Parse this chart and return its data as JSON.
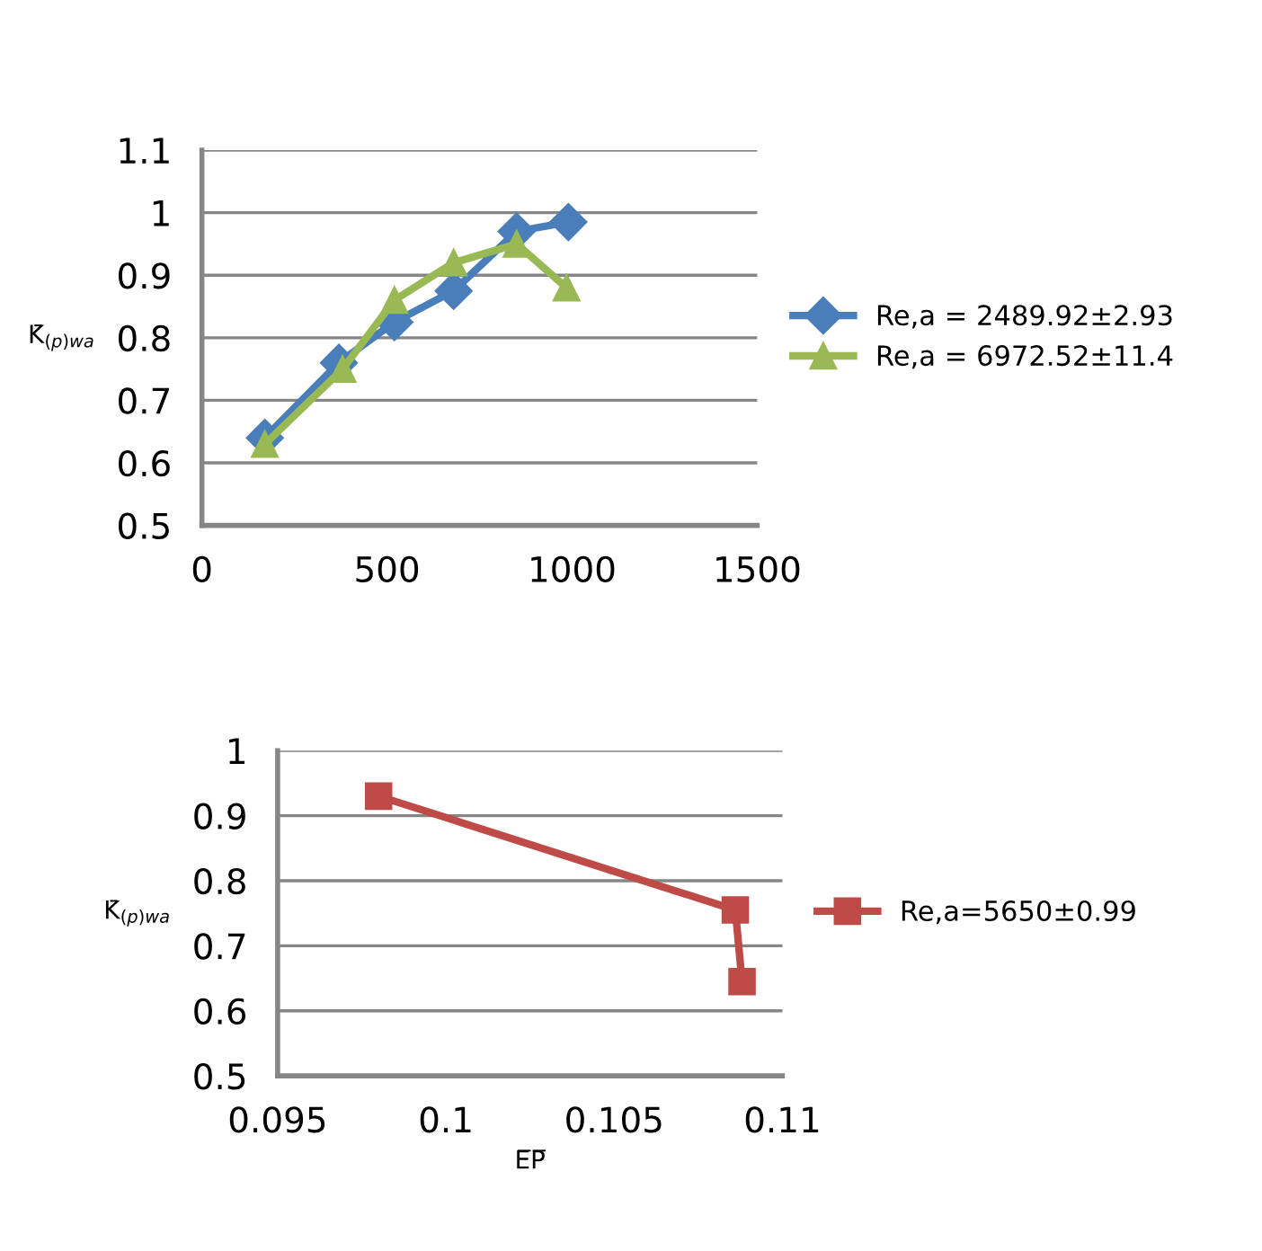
{
  "chart_data": [
    {
      "type": "line",
      "ylabel": "K̄$_{(p)wa}$",
      "xlim": [
        0,
        1500
      ],
      "xticks": [
        0,
        500,
        1000,
        1500
      ],
      "ylim": [
        0.5,
        1.1
      ],
      "yticks": [
        0.5,
        0.6,
        0.7,
        0.8,
        0.9,
        1,
        1.1
      ],
      "grid": "y",
      "legend": "right",
      "line_style": "solid",
      "series": [
        {
          "name": "Re,a = 2489.92±2.93",
          "color": "#4a7ebb",
          "marker": "diamond",
          "x": [
            170,
            370,
            520,
            680,
            850,
            990
          ],
          "values": [
            0.64,
            0.76,
            0.825,
            0.875,
            0.97,
            0.985
          ]
        },
        {
          "name": "Re,a = 6972.52±11.4",
          "color": "#98b954",
          "marker": "triangle",
          "x": [
            170,
            380,
            520,
            680,
            850,
            985
          ],
          "values": [
            0.63,
            0.75,
            0.86,
            0.92,
            0.95,
            0.88
          ]
        }
      ]
    },
    {
      "type": "line",
      "ylabel": "K̄$_{(p)wa}$",
      "xlabel": "E̅P̅",
      "xlim": [
        0.095,
        0.11
      ],
      "xticks": [
        0.095,
        0.1,
        0.105,
        0.11
      ],
      "ylim": [
        0.5,
        1
      ],
      "yticks": [
        0.5,
        0.6,
        0.7,
        0.8,
        0.9,
        1
      ],
      "grid": "y",
      "legend": "right",
      "line_style": "solid",
      "series": [
        {
          "name": "Re,a=5650±0.99",
          "color": "#be4b48",
          "marker": "square",
          "x": [
            0.098,
            0.1086,
            0.1088
          ],
          "values": [
            0.93,
            0.755,
            0.645
          ]
        }
      ]
    }
  ]
}
